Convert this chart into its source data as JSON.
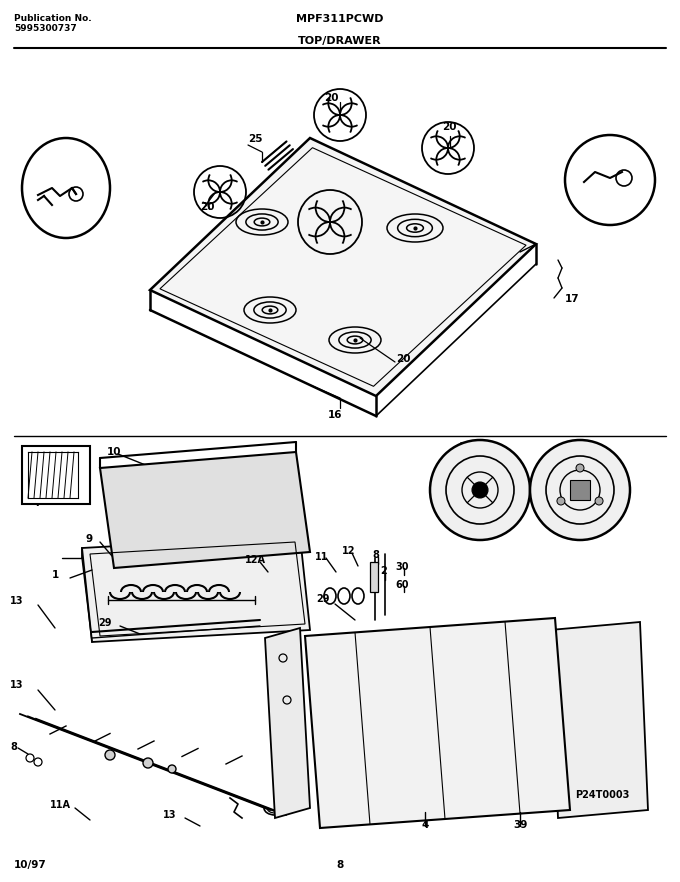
{
  "title_model": "MPF311PCWD",
  "title_section": "TOP/DRAWER",
  "pub_no_label": "Publication No.",
  "pub_no_value": "5995300737",
  "footer_date": "10/97",
  "footer_page": "8",
  "watermark": "P24T0003",
  "bg_color": "#ffffff",
  "line_color": "#000000",
  "fig_width": 6.8,
  "fig_height": 8.82,
  "dpi": 100
}
